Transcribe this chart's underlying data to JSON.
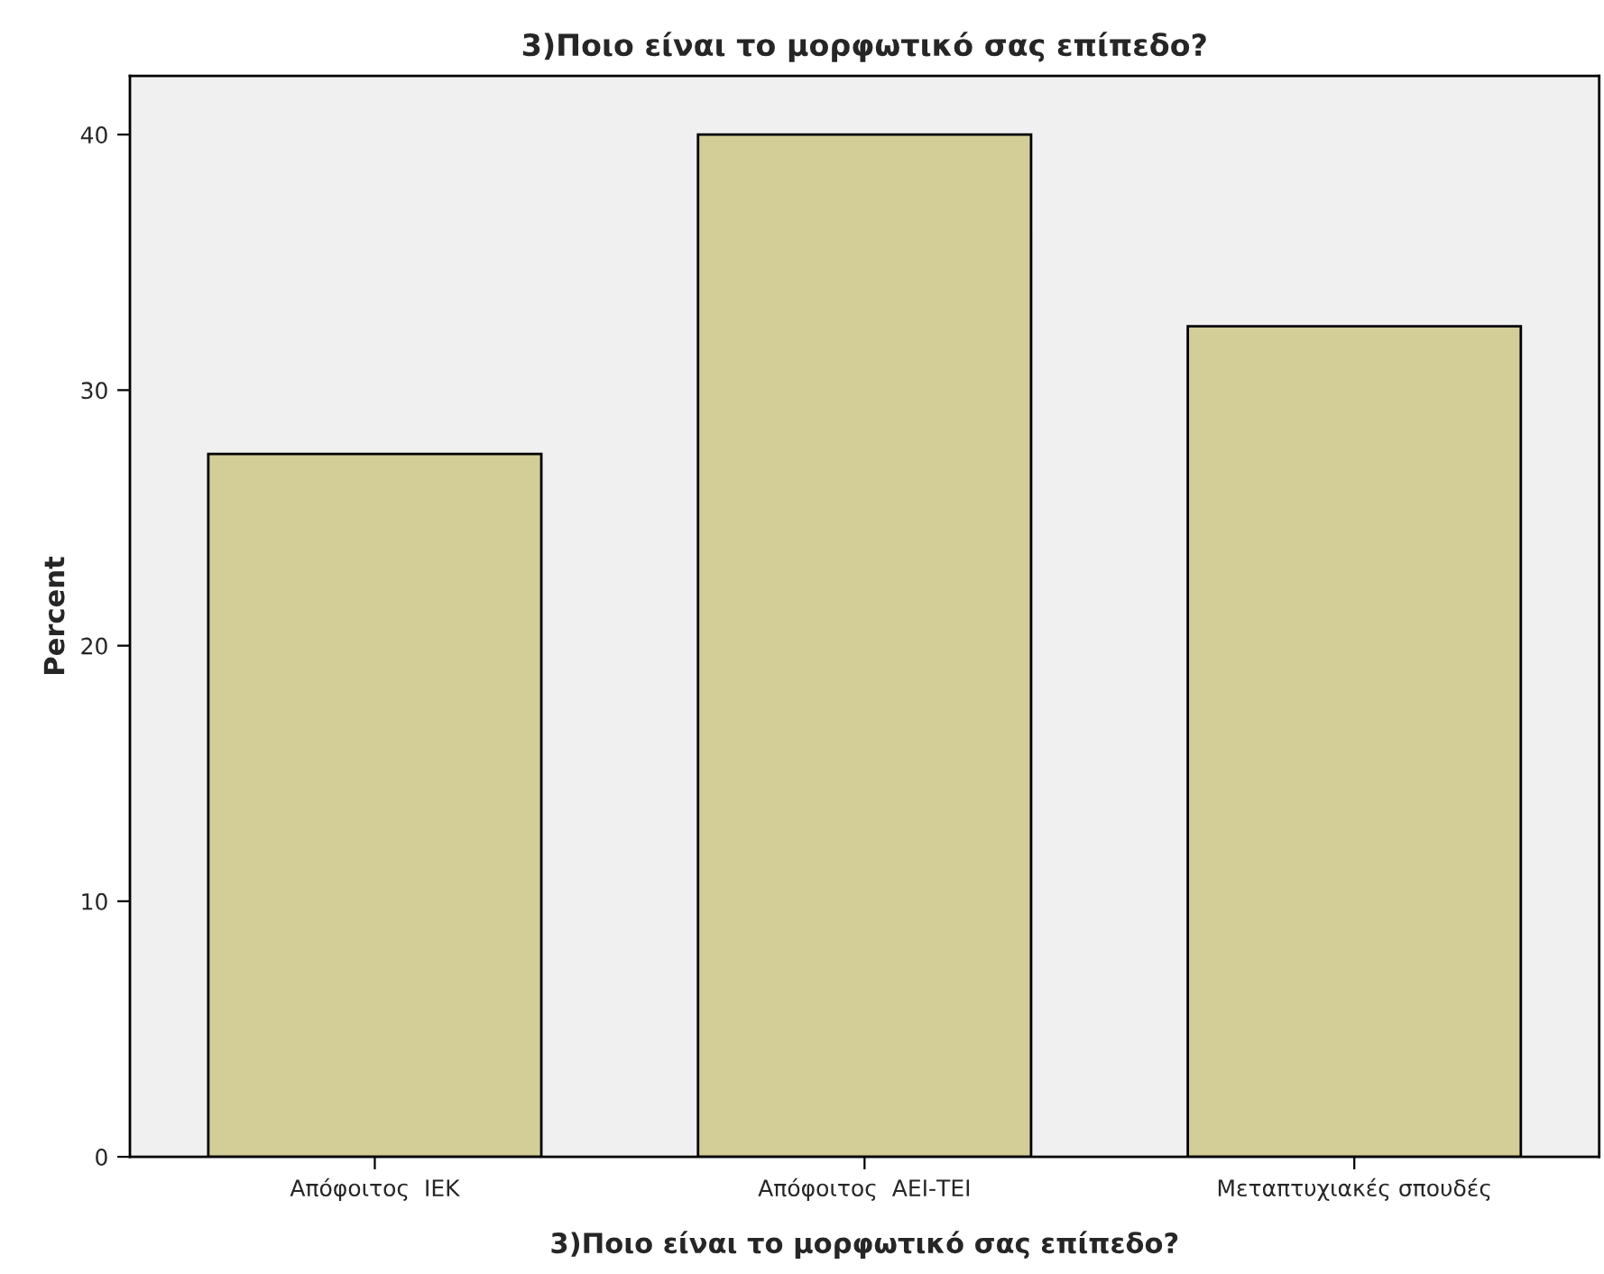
{
  "chart_data": {
    "type": "bar",
    "title": "3)Ποιο είναι το μορφωτικό σας επίπεδο?",
    "xlabel": "3)Ποιο είναι το μορφωτικό σας επίπεδο?",
    "ylabel": "Percent",
    "categories": [
      "Απόφοιτος  ΙΕΚ",
      "Απόφοιτος  ΑΕΙ-ΤΕΙ",
      "Μεταπτυχιακές σπουδές"
    ],
    "values": [
      27.5,
      40,
      32.5
    ],
    "color": "#d3ce97",
    "ylim": [
      0,
      42.3
    ],
    "yticks": [
      0,
      10,
      20,
      30,
      40
    ],
    "grid": false,
    "legend": false
  }
}
